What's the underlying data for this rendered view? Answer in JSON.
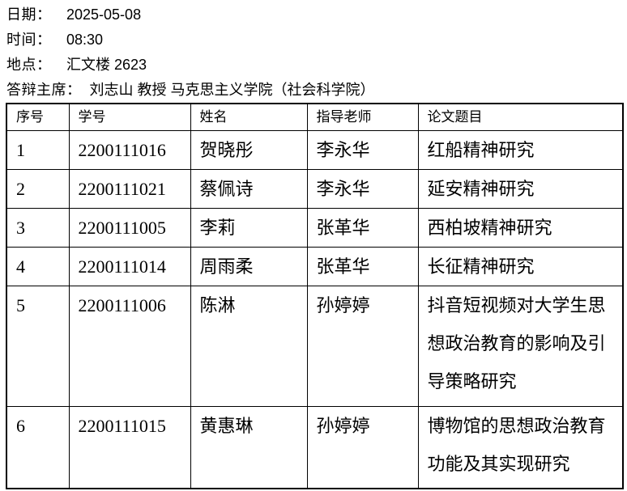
{
  "info": [
    {
      "label": "日期：",
      "value": "2025-05-08"
    },
    {
      "label": "时间：",
      "value": "08:30"
    },
    {
      "label": "地点：",
      "value": "汇文楼 2623"
    },
    {
      "label": "答辩主席：",
      "value": "刘志山 教授 马克思主义学院（社会科学院）"
    }
  ],
  "table": {
    "headers": [
      "序号",
      "学号",
      "姓名",
      "指导老师",
      "论文题目"
    ],
    "rows": [
      [
        "1",
        "2200111016",
        "贺晓彤",
        "李永华",
        "红船精神研究"
      ],
      [
        "2",
        "2200111021",
        "蔡佩诗",
        "李永华",
        "延安精神研究"
      ],
      [
        "3",
        "2200111005",
        "李莉",
        "张革华",
        "西柏坡精神研究"
      ],
      [
        "4",
        "2200111014",
        "周雨柔",
        "张革华",
        "长征精神研究"
      ],
      [
        "5",
        "2200111006",
        "陈淋",
        "孙婷婷",
        "抖音短视频对大学生思想政治教育的影响及引导策略研究"
      ],
      [
        "6",
        "2200111015",
        "黄惠琳",
        "孙婷婷",
        "博物馆的思想政治教育功能及其实现研究"
      ]
    ]
  }
}
